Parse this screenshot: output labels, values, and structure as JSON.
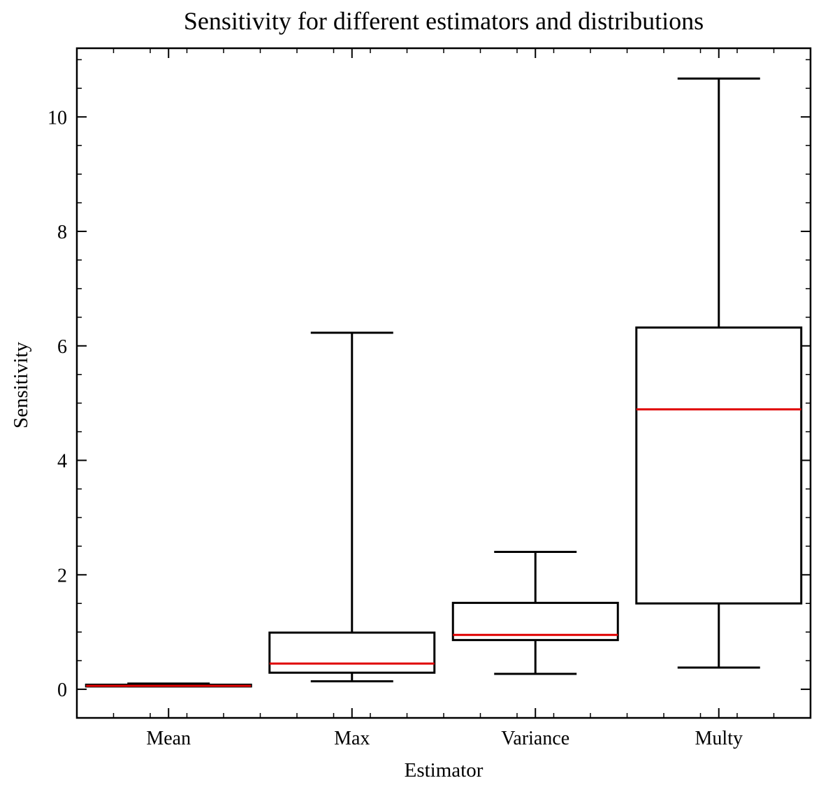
{
  "chart_data": {
    "type": "boxplot",
    "title": "Sensitivity for different estimators and distributions",
    "xlabel": "Estimator",
    "ylabel": "Sensitivity",
    "ylim": [
      -0.5,
      11.2
    ],
    "yticks": [
      0,
      2,
      4,
      6,
      8,
      10
    ],
    "y_minor_step": 0.5,
    "grid": false,
    "legend": "none",
    "colors": {
      "box": "#000000",
      "median": "#e00000"
    },
    "categories": [
      "Mean",
      "Max",
      "Variance",
      "Multy"
    ],
    "boxes": [
      {
        "label": "Mean",
        "whislo": 0.05,
        "q1": 0.05,
        "med": 0.06,
        "q3": 0.08,
        "whishi": 0.1
      },
      {
        "label": "Max",
        "whislo": 0.14,
        "q1": 0.29,
        "med": 0.45,
        "q3": 0.99,
        "whishi": 6.23
      },
      {
        "label": "Variance",
        "whislo": 0.27,
        "q1": 0.86,
        "med": 0.95,
        "q3": 1.51,
        "whishi": 2.4
      },
      {
        "label": "Multy",
        "whislo": 0.38,
        "q1": 1.5,
        "med": 4.89,
        "q3": 6.32,
        "whishi": 10.67
      }
    ]
  }
}
